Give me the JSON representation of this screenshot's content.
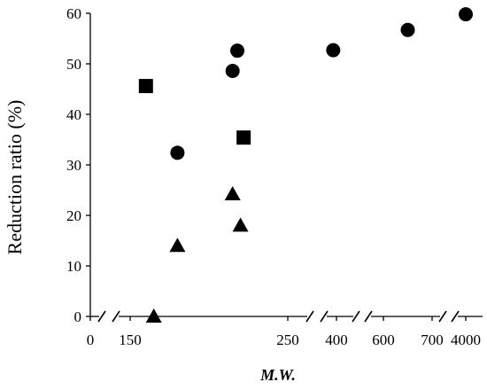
{
  "chart_data": {
    "type": "scatter",
    "title": "",
    "xlabel": "M.W.",
    "ylabel": "Reduction ratio (%)",
    "ylim": [
      0,
      60
    ],
    "yticks": [
      "0",
      "10",
      "20",
      "30",
      "40",
      "50",
      "60"
    ],
    "xticks": [
      "0",
      "150",
      "250",
      "400",
      "600",
      "700",
      "4000"
    ],
    "x_axis_broken": true,
    "grid": false,
    "legend": "none",
    "series": [
      {
        "marker": "circle",
        "points": [
          {
            "x": 180,
            "y": 32.4
          },
          {
            "x": 215,
            "y": 48.6
          },
          {
            "x": 218,
            "y": 52.6
          },
          {
            "x": 390,
            "y": 52.7
          },
          {
            "x": 650,
            "y": 56.7
          },
          {
            "x": 4000,
            "y": 59.8
          }
        ]
      },
      {
        "marker": "square",
        "points": [
          {
            "x": 160,
            "y": 45.6
          },
          {
            "x": 222,
            "y": 35.4
          }
        ]
      },
      {
        "marker": "triangle",
        "points": [
          {
            "x": 165,
            "y": 0
          },
          {
            "x": 180,
            "y": 14.0
          },
          {
            "x": 215,
            "y": 24.2
          },
          {
            "x": 220,
            "y": 18.0
          }
        ]
      }
    ]
  }
}
